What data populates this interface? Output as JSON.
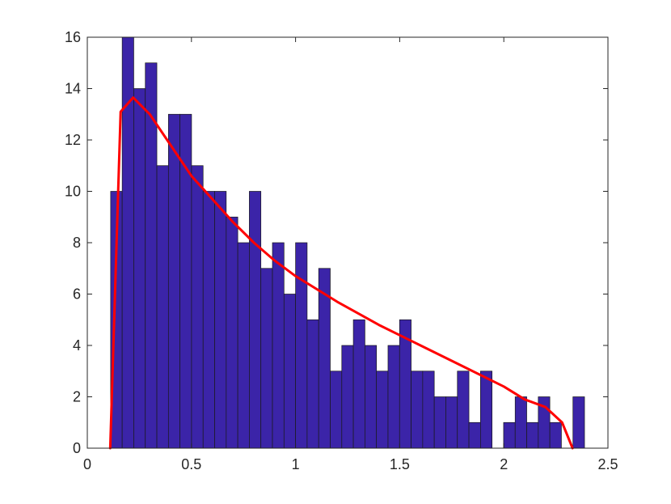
{
  "chart_data": {
    "type": "bar",
    "title": "",
    "xlabel": "",
    "ylabel": "",
    "xlim": [
      0,
      2.5
    ],
    "ylim": [
      0,
      16
    ],
    "grid": false,
    "x_ticks": [
      0,
      0.5,
      1,
      1.5,
      2,
      2.5
    ],
    "x_tick_labels": [
      "0",
      "0.5",
      "1",
      "1.5",
      "2",
      "2.5"
    ],
    "y_ticks": [
      0,
      2,
      4,
      6,
      8,
      10,
      12,
      14,
      16
    ],
    "y_tick_labels": [
      "0",
      "2",
      "4",
      "6",
      "8",
      "10",
      "12",
      "14",
      "16"
    ],
    "bin_start": 0.112,
    "bin_width": 0.0555,
    "counts": [
      10,
      16,
      14,
      15,
      11,
      13,
      13,
      11,
      10,
      10,
      9,
      8,
      10,
      7,
      8,
      6,
      8,
      5,
      7,
      3,
      4,
      5,
      4,
      3,
      4,
      5,
      3,
      3,
      2,
      2,
      3,
      1,
      3,
      0,
      1,
      2,
      1,
      2,
      1,
      0,
      2
    ],
    "bar_color": "#3b24a8",
    "curve_color": "#ff0000",
    "curve": {
      "x": [
        0.11,
        0.16,
        0.22,
        0.3,
        0.4,
        0.5,
        0.6,
        0.7,
        0.8,
        0.9,
        1.0,
        1.2,
        1.4,
        1.6,
        1.8,
        2.0,
        2.1,
        2.2,
        2.28,
        2.33
      ],
      "y": [
        0,
        13.1,
        13.65,
        13.0,
        11.8,
        10.6,
        9.7,
        8.8,
        8.0,
        7.3,
        6.7,
        5.7,
        4.8,
        4.0,
        3.2,
        2.4,
        1.9,
        1.6,
        1.0,
        0
      ]
    }
  }
}
